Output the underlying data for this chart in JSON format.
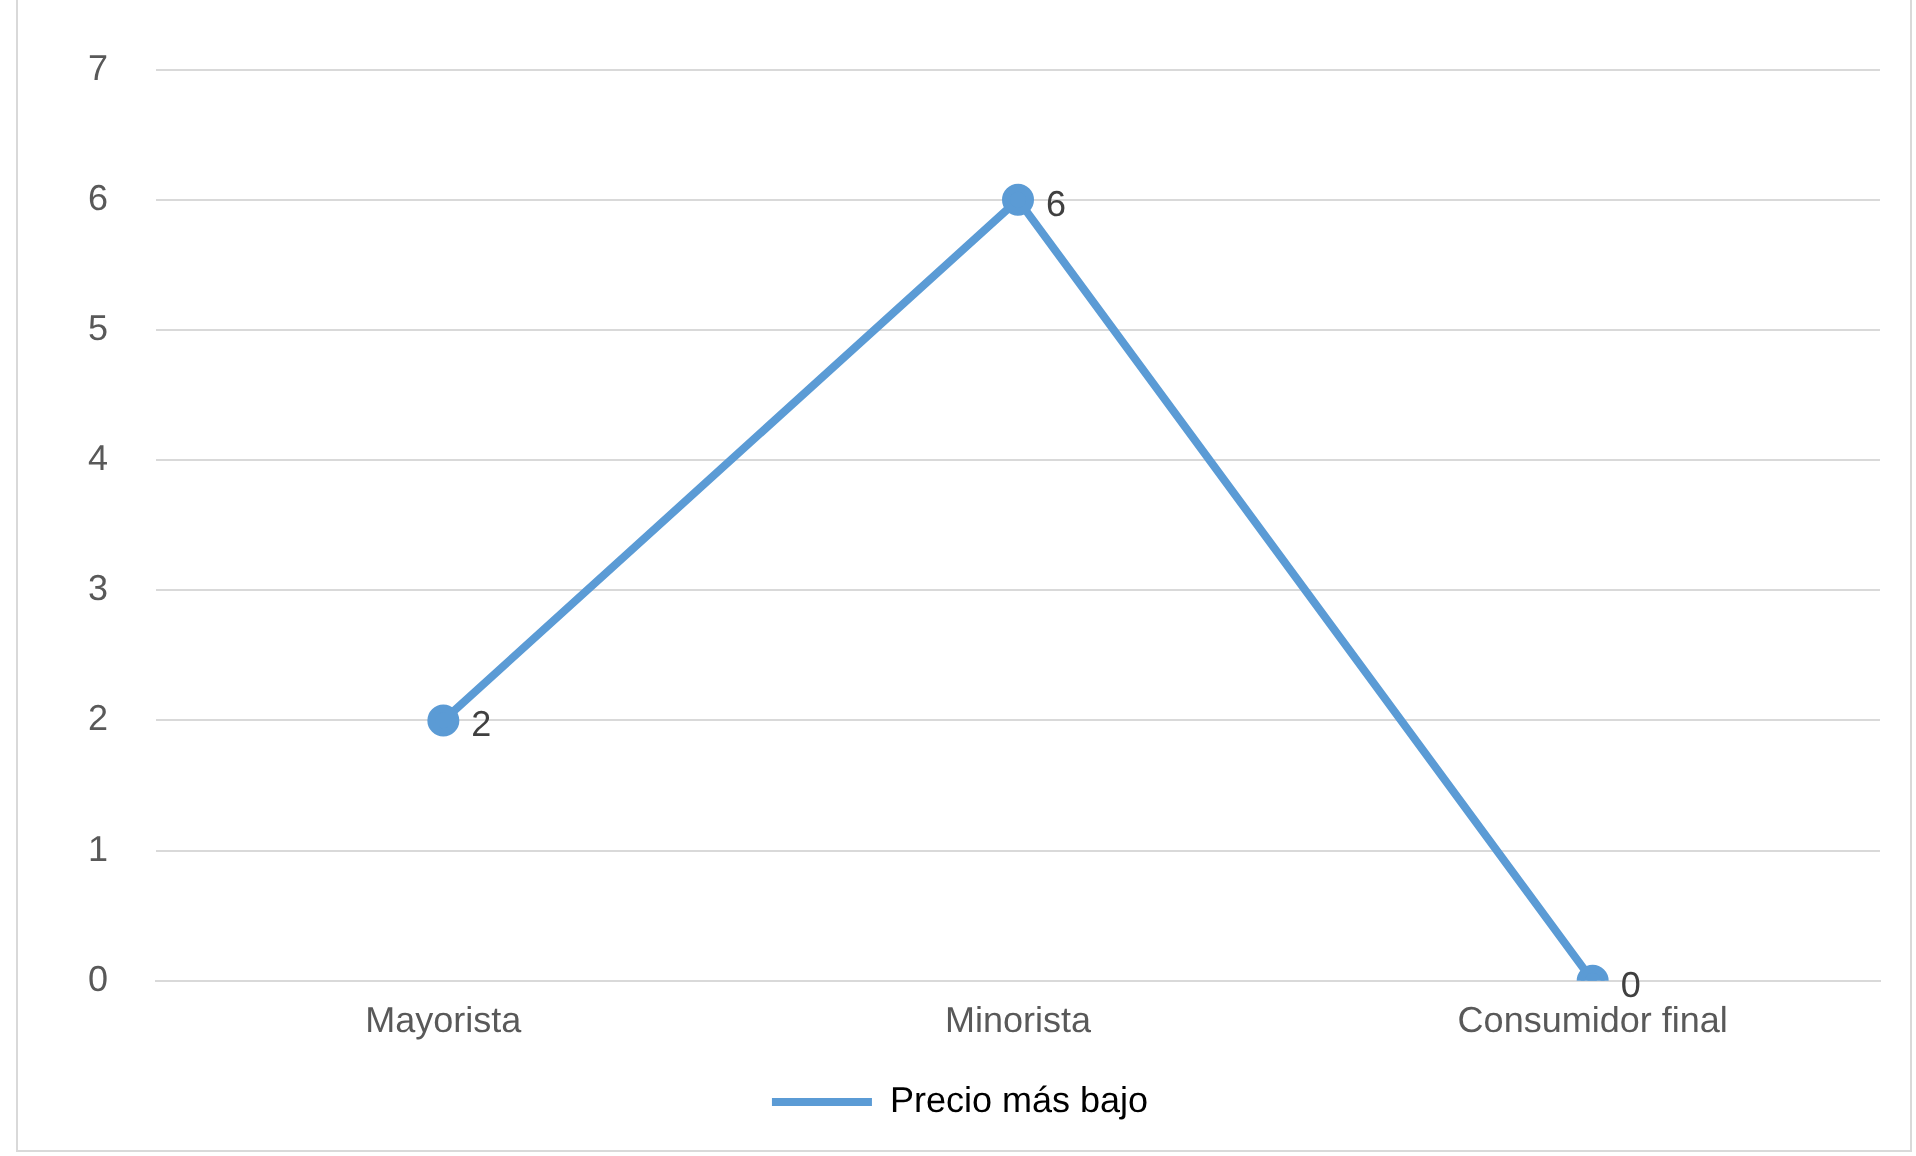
{
  "chart_data": {
    "type": "line",
    "categories": [
      "Mayorista",
      "Minorista",
      "Consumidor final"
    ],
    "series": [
      {
        "name": "Precio más bajo",
        "color": "#5b9bd5",
        "values": [
          2,
          6,
          0
        ]
      }
    ],
    "ylim": [
      0,
      7
    ],
    "yticks": [
      0,
      1,
      2,
      3,
      4,
      5,
      6,
      7
    ],
    "grid": "y",
    "legend": "bottom",
    "marker": "circle",
    "data_labels": true
  }
}
